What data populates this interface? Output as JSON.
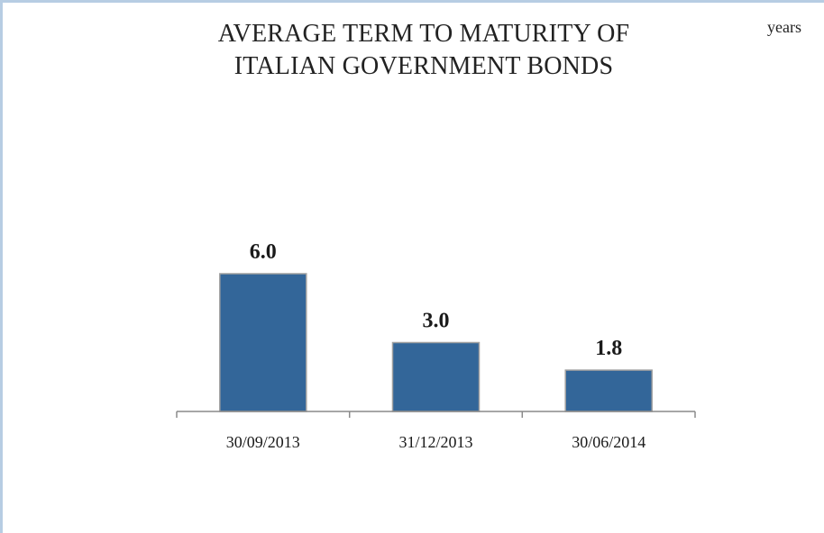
{
  "chart_data": {
    "type": "bar",
    "title_lines": [
      "AVERAGE TERM TO MATURITY OF",
      "ITALIAN GOVERNMENT BONDS"
    ],
    "units": "years",
    "categories": [
      "30/09/2013",
      "31/12/2013",
      "30/06/2014"
    ],
    "values": [
      6.0,
      3.0,
      1.8
    ],
    "data_labels": [
      "6.0",
      "3.0",
      "1.8"
    ],
    "xlabel": "",
    "ylabel": "",
    "ylim": [
      0,
      6.0
    ],
    "grid": false,
    "legend": "none",
    "bar_color": "#336699",
    "bar_edge_color": "#a0a0a0"
  }
}
